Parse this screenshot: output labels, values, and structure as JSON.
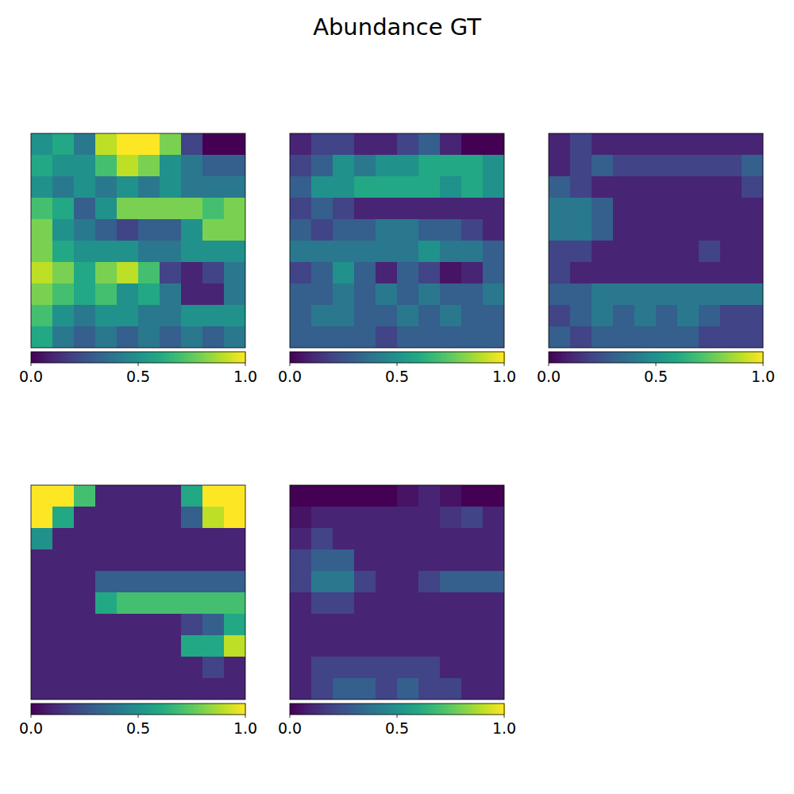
{
  "title": "Abundance GT",
  "chart_data": [
    {
      "type": "heatmap",
      "tick_labels": false,
      "colorbar_range": [
        0,
        1
      ],
      "colorbar_ticks": [
        {
          "value": 0,
          "label": "0.0"
        },
        {
          "value": 0.5,
          "label": "0.5"
        },
        {
          "value": 1,
          "label": "1.0"
        }
      ],
      "cells": [
        [
          0.5,
          0.6,
          0.4,
          0.9,
          1,
          1,
          0.8,
          0.2,
          0,
          0
        ],
        [
          0.6,
          0.5,
          0.5,
          0.7,
          0.9,
          0.8,
          0.5,
          0.4,
          0.3,
          0.3
        ],
        [
          0.5,
          0.4,
          0.5,
          0.4,
          0.5,
          0.4,
          0.5,
          0.4,
          0.4,
          0.4
        ],
        [
          0.7,
          0.6,
          0.3,
          0.5,
          0.8,
          0.8,
          0.8,
          0.8,
          0.7,
          0.8
        ],
        [
          0.8,
          0.5,
          0.4,
          0.3,
          0.2,
          0.3,
          0.3,
          0.5,
          0.8,
          0.8
        ],
        [
          0.8,
          0.6,
          0.5,
          0.5,
          0.5,
          0.4,
          0.4,
          0.5,
          0.5,
          0.5
        ],
        [
          0.9,
          0.8,
          0.6,
          0.8,
          0.9,
          0.7,
          0.2,
          0.1,
          0.2,
          0.4
        ],
        [
          0.8,
          0.7,
          0.6,
          0.7,
          0.5,
          0.6,
          0.4,
          0.1,
          0.1,
          0.4
        ],
        [
          0.7,
          0.5,
          0.4,
          0.5,
          0.5,
          0.4,
          0.4,
          0.5,
          0.5,
          0.5
        ],
        [
          0.6,
          0.4,
          0.3,
          0.4,
          0.3,
          0.4,
          0.3,
          0.4,
          0.3,
          0.4
        ]
      ]
    },
    {
      "type": "heatmap",
      "tick_labels": false,
      "colorbar_range": [
        0,
        1
      ],
      "colorbar_ticks": [
        {
          "value": 0,
          "label": "0.0"
        },
        {
          "value": 0.5,
          "label": "0.5"
        },
        {
          "value": 1,
          "label": "1.0"
        }
      ],
      "cells": [
        [
          0.1,
          0.2,
          0.2,
          0.1,
          0.1,
          0.2,
          0.3,
          0.1,
          0,
          0
        ],
        [
          0.2,
          0.3,
          0.5,
          0.4,
          0.5,
          0.5,
          0.6,
          0.6,
          0.6,
          0.5
        ],
        [
          0.3,
          0.5,
          0.5,
          0.6,
          0.6,
          0.6,
          0.6,
          0.5,
          0.6,
          0.5
        ],
        [
          0.2,
          0.3,
          0.2,
          0.1,
          0.1,
          0.1,
          0.1,
          0.1,
          0.1,
          0.1
        ],
        [
          0.3,
          0.2,
          0.3,
          0.3,
          0.4,
          0.4,
          0.3,
          0.3,
          0.2,
          0.1
        ],
        [
          0.4,
          0.4,
          0.4,
          0.4,
          0.4,
          0.4,
          0.5,
          0.4,
          0.4,
          0.3
        ],
        [
          0.2,
          0.3,
          0.5,
          0.3,
          0.1,
          0.3,
          0.2,
          0.05,
          0.1,
          0.3
        ],
        [
          0.3,
          0.3,
          0.4,
          0.3,
          0.4,
          0.3,
          0.4,
          0.3,
          0.3,
          0.4
        ],
        [
          0.3,
          0.4,
          0.4,
          0.3,
          0.3,
          0.4,
          0.3,
          0.4,
          0.3,
          0.3
        ],
        [
          0.3,
          0.3,
          0.3,
          0.3,
          0.2,
          0.3,
          0.3,
          0.3,
          0.3,
          0.3
        ]
      ]
    },
    {
      "type": "heatmap",
      "tick_labels": false,
      "colorbar_range": [
        0,
        1
      ],
      "colorbar_ticks": [
        {
          "value": 0,
          "label": "0.0"
        },
        {
          "value": 0.5,
          "label": "0.5"
        },
        {
          "value": 1,
          "label": "1.0"
        }
      ],
      "cells": [
        [
          0.1,
          0.2,
          0.1,
          0.1,
          0.1,
          0.1,
          0.1,
          0.1,
          0.1,
          0.1
        ],
        [
          0.1,
          0.2,
          0.3,
          0.2,
          0.2,
          0.2,
          0.2,
          0.2,
          0.2,
          0.3
        ],
        [
          0.3,
          0.2,
          0.1,
          0.1,
          0.1,
          0.1,
          0.1,
          0.1,
          0.1,
          0.2
        ],
        [
          0.4,
          0.4,
          0.3,
          0.1,
          0.1,
          0.1,
          0.1,
          0.1,
          0.1,
          0.1
        ],
        [
          0.4,
          0.4,
          0.3,
          0.1,
          0.1,
          0.1,
          0.1,
          0.1,
          0.1,
          0.1
        ],
        [
          0.2,
          0.2,
          0.1,
          0.1,
          0.1,
          0.1,
          0.1,
          0.2,
          0.1,
          0.1
        ],
        [
          0.2,
          0.1,
          0.1,
          0.1,
          0.1,
          0.1,
          0.1,
          0.1,
          0.1,
          0.1
        ],
        [
          0.3,
          0.3,
          0.4,
          0.4,
          0.4,
          0.4,
          0.4,
          0.4,
          0.4,
          0.4
        ],
        [
          0.2,
          0.3,
          0.4,
          0.3,
          0.4,
          0.3,
          0.4,
          0.3,
          0.2,
          0.2
        ],
        [
          0.3,
          0.2,
          0.3,
          0.3,
          0.3,
          0.3,
          0.3,
          0.2,
          0.2,
          0.2
        ]
      ]
    },
    {
      "type": "heatmap",
      "tick_labels": false,
      "colorbar_range": [
        0,
        1
      ],
      "colorbar_ticks": [
        {
          "value": 0,
          "label": "0.0"
        },
        {
          "value": 0.5,
          "label": "0.5"
        },
        {
          "value": 1,
          "label": "1.0"
        }
      ],
      "cells": [
        [
          1,
          1,
          0.7,
          0.1,
          0.1,
          0.1,
          0.1,
          0.6,
          1,
          1
        ],
        [
          1,
          0.6,
          0.1,
          0.1,
          0.1,
          0.1,
          0.1,
          0.3,
          0.9,
          1
        ],
        [
          0.5,
          0.1,
          0.1,
          0.1,
          0.1,
          0.1,
          0.1,
          0.1,
          0.1,
          0.1
        ],
        [
          0.1,
          0.1,
          0.1,
          0.1,
          0.1,
          0.1,
          0.1,
          0.1,
          0.1,
          0.1
        ],
        [
          0.1,
          0.1,
          0.1,
          0.3,
          0.3,
          0.3,
          0.3,
          0.3,
          0.3,
          0.3
        ],
        [
          0.1,
          0.1,
          0.1,
          0.6,
          0.7,
          0.7,
          0.7,
          0.7,
          0.7,
          0.7
        ],
        [
          0.1,
          0.1,
          0.1,
          0.1,
          0.1,
          0.1,
          0.1,
          0.2,
          0.3,
          0.6
        ],
        [
          0.1,
          0.1,
          0.1,
          0.1,
          0.1,
          0.1,
          0.1,
          0.6,
          0.6,
          0.9
        ],
        [
          0.1,
          0.1,
          0.1,
          0.1,
          0.1,
          0.1,
          0.1,
          0.1,
          0.2,
          0.1
        ],
        [
          0.1,
          0.1,
          0.1,
          0.1,
          0.1,
          0.1,
          0.1,
          0.1,
          0.1,
          0.1
        ]
      ]
    },
    {
      "type": "heatmap",
      "tick_labels": false,
      "colorbar_range": [
        0,
        1
      ],
      "colorbar_ticks": [
        {
          "value": 0,
          "label": "0.0"
        },
        {
          "value": 0.5,
          "label": "0.5"
        },
        {
          "value": 1,
          "label": "1.0"
        }
      ],
      "cells": [
        [
          0,
          0,
          0,
          0,
          0,
          0.05,
          0.1,
          0.05,
          0,
          0
        ],
        [
          0.05,
          0.1,
          0.1,
          0.1,
          0.1,
          0.1,
          0.1,
          0.15,
          0.2,
          0.1
        ],
        [
          0.1,
          0.2,
          0.1,
          0.1,
          0.1,
          0.1,
          0.1,
          0.1,
          0.1,
          0.1
        ],
        [
          0.2,
          0.3,
          0.3,
          0.1,
          0.1,
          0.1,
          0.1,
          0.1,
          0.1,
          0.1
        ],
        [
          0.2,
          0.4,
          0.4,
          0.2,
          0.1,
          0.1,
          0.2,
          0.3,
          0.3,
          0.3
        ],
        [
          0.1,
          0.2,
          0.2,
          0.1,
          0.1,
          0.1,
          0.1,
          0.1,
          0.1,
          0.1
        ],
        [
          0.1,
          0.1,
          0.1,
          0.1,
          0.1,
          0.1,
          0.1,
          0.1,
          0.1,
          0.1
        ],
        [
          0.1,
          0.1,
          0.1,
          0.1,
          0.1,
          0.1,
          0.1,
          0.1,
          0.1,
          0.1
        ],
        [
          0.1,
          0.2,
          0.2,
          0.2,
          0.2,
          0.2,
          0.2,
          0.1,
          0.1,
          0.1
        ],
        [
          0.1,
          0.2,
          0.3,
          0.3,
          0.2,
          0.3,
          0.2,
          0.2,
          0.1,
          0.1
        ]
      ]
    }
  ]
}
